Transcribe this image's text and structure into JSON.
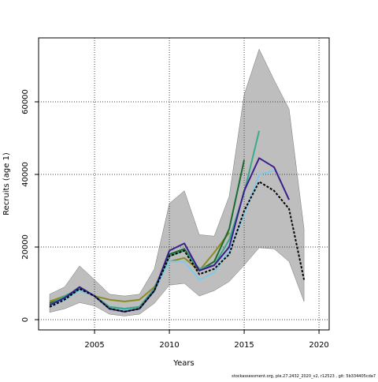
{
  "chart_data": {
    "type": "line",
    "x_label": "Years",
    "y_label": "Recruits (age 1)",
    "footnote": "stockassessment.org, ple.27.2432_2020_v2, r12523 , git: 5b334405cda7",
    "x": [
      2002,
      2003,
      2004,
      2005,
      2006,
      2007,
      2008,
      2009,
      2010,
      2011,
      2012,
      2013,
      2014,
      2015,
      2016,
      2017,
      2018,
      2019
    ],
    "xlim": [
      2001.26,
      2020.68
    ],
    "xticks": [
      2005,
      2010,
      2015,
      2020
    ],
    "ylim": [
      -2826,
      77609
    ],
    "yticks": [
      0,
      20000,
      40000,
      60000
    ],
    "grid": true,
    "band": {
      "color": "#bebebe",
      "upper": [
        7000,
        9000,
        14800,
        11000,
        7000,
        6500,
        7000,
        14000,
        32000,
        35500,
        23400,
        23000,
        34000,
        62000,
        74500,
        66000,
        58000,
        25000
      ],
      "lower": [
        2000,
        3000,
        4700,
        3800,
        1500,
        1000,
        1500,
        4500,
        9500,
        10000,
        6500,
        8000,
        10500,
        15000,
        19800,
        19500,
        16000,
        5000
      ]
    },
    "series": [
      {
        "color": "#8b8b20",
        "values": [
          5000,
          6500,
          8000,
          6500,
          5500,
          5000,
          5500,
          9000,
          16000,
          17000,
          13500,
          18500,
          24000,
          null,
          null,
          null,
          null,
          null
        ]
      },
      {
        "color": "#1a6b30",
        "values": [
          4500,
          6000,
          8500,
          6500,
          3500,
          3000,
          3500,
          8500,
          18000,
          19500,
          13500,
          16000,
          25000,
          44000,
          null,
          null,
          null,
          null
        ]
      },
      {
        "color": "#3aaa8c",
        "values": [
          4000,
          6500,
          8500,
          6500,
          3500,
          3000,
          3500,
          8500,
          17500,
          19000,
          14000,
          15000,
          22000,
          35000,
          52000,
          null,
          null,
          null
        ]
      },
      {
        "color": "#7fc9e8",
        "values": [
          3500,
          5500,
          8000,
          6500,
          3000,
          2500,
          3000,
          8000,
          16000,
          16000,
          11000,
          13000,
          19000,
          29000,
          40000,
          41000,
          null,
          null
        ]
      },
      {
        "color": "#3a1f8c",
        "values": [
          4000,
          6000,
          9000,
          6500,
          3000,
          2200,
          3000,
          8000,
          19000,
          21000,
          13500,
          15000,
          20000,
          35500,
          44500,
          42000,
          33000,
          null
        ]
      },
      {
        "color": "#000000",
        "dashed": true,
        "values": [
          3500,
          5500,
          8500,
          6500,
          3000,
          2200,
          3000,
          8000,
          17500,
          19000,
          12500,
          14000,
          18000,
          30000,
          38000,
          35500,
          30500,
          11000
        ]
      }
    ]
  }
}
